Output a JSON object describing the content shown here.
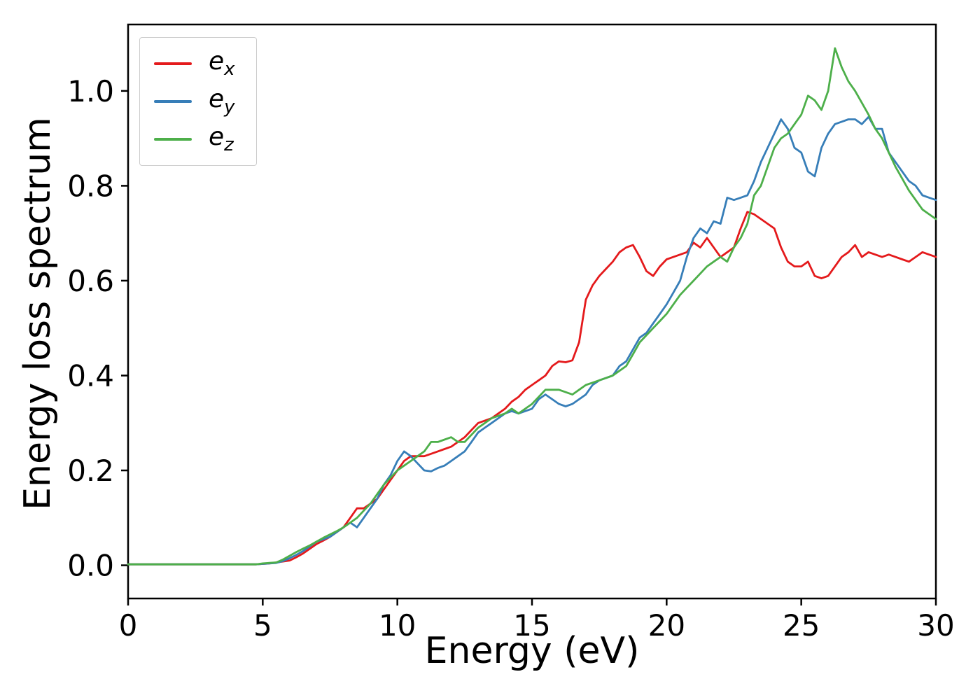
{
  "chart_data": {
    "type": "line",
    "title": "",
    "xlabel": "Energy (eV)",
    "ylabel": "Energy loss spectrum",
    "xlim": [
      0,
      30
    ],
    "ylim": [
      -0.07,
      1.14
    ],
    "xticks": [
      0,
      5,
      10,
      15,
      20,
      25,
      30
    ],
    "xtick_labels": [
      "0",
      "5",
      "10",
      "15",
      "20",
      "25",
      "30"
    ],
    "yticks": [
      0.0,
      0.2,
      0.4,
      0.6,
      0.8,
      1.0
    ],
    "ytick_labels": [
      "0.0",
      "0.2",
      "0.4",
      "0.6",
      "0.8",
      "1.0"
    ],
    "grid": false,
    "legend_position": "upper-left",
    "x": [
      0,
      0.25,
      0.5,
      0.75,
      1,
      1.25,
      1.5,
      1.75,
      2,
      2.25,
      2.5,
      2.75,
      3,
      3.25,
      3.5,
      3.75,
      4,
      4.25,
      4.5,
      4.75,
      5,
      5.25,
      5.5,
      5.75,
      6,
      6.25,
      6.5,
      6.75,
      7,
      7.25,
      7.5,
      7.75,
      8,
      8.25,
      8.5,
      8.75,
      9,
      9.25,
      9.5,
      9.75,
      10,
      10.25,
      10.5,
      10.75,
      11,
      11.25,
      11.5,
      11.75,
      12,
      12.25,
      12.5,
      12.75,
      13,
      13.25,
      13.5,
      13.75,
      14,
      14.25,
      14.5,
      14.75,
      15,
      15.25,
      15.5,
      15.75,
      16,
      16.25,
      16.5,
      16.75,
      17,
      17.25,
      17.5,
      17.75,
      18,
      18.25,
      18.5,
      18.75,
      19,
      19.25,
      19.5,
      19.75,
      20,
      20.25,
      20.5,
      20.75,
      21,
      21.25,
      21.5,
      21.75,
      22,
      22.25,
      22.5,
      22.75,
      23,
      23.25,
      23.5,
      23.75,
      24,
      24.25,
      24.5,
      24.75,
      25,
      25.25,
      25.5,
      25.75,
      26,
      26.25,
      26.5,
      26.75,
      27,
      27.25,
      27.5,
      27.75,
      28,
      28.25,
      28.5,
      28.75,
      29,
      29.25,
      29.5,
      29.75,
      30
    ],
    "series": [
      {
        "name": "e_x",
        "color": "#e41a1c",
        "y": [
          0.002,
          0.002,
          0.002,
          0.002,
          0.002,
          0.002,
          0.002,
          0.002,
          0.002,
          0.002,
          0.002,
          0.002,
          0.002,
          0.002,
          0.002,
          0.002,
          0.002,
          0.002,
          0.002,
          0.002,
          0.003,
          0.004,
          0.006,
          0.008,
          0.01,
          0.017,
          0.025,
          0.035,
          0.045,
          0.052,
          0.06,
          0.07,
          0.08,
          0.1,
          0.12,
          0.12,
          0.13,
          0.14,
          0.16,
          0.18,
          0.2,
          0.22,
          0.23,
          0.23,
          0.23,
          0.235,
          0.24,
          0.245,
          0.25,
          0.26,
          0.27,
          0.285,
          0.3,
          0.305,
          0.31,
          0.32,
          0.33,
          0.345,
          0.355,
          0.37,
          0.38,
          0.39,
          0.4,
          0.42,
          0.43,
          0.428,
          0.432,
          0.47,
          0.56,
          0.59,
          0.61,
          0.625,
          0.64,
          0.66,
          0.67,
          0.675,
          0.65,
          0.62,
          0.61,
          0.63,
          0.645,
          0.65,
          0.655,
          0.66,
          0.68,
          0.67,
          0.69,
          0.67,
          0.65,
          0.66,
          0.67,
          0.71,
          0.745,
          0.74,
          0.73,
          0.72,
          0.71,
          0.67,
          0.64,
          0.63,
          0.63,
          0.64,
          0.61,
          0.605,
          0.61,
          0.63,
          0.65,
          0.66,
          0.675,
          0.65,
          0.66,
          0.655,
          0.65,
          0.655,
          0.65,
          0.645,
          0.64,
          0.65,
          0.66,
          0.655,
          0.65
        ]
      },
      {
        "name": "e_y",
        "color": "#377eb8",
        "y": [
          0.002,
          0.002,
          0.002,
          0.002,
          0.002,
          0.002,
          0.002,
          0.002,
          0.002,
          0.002,
          0.002,
          0.002,
          0.002,
          0.002,
          0.002,
          0.002,
          0.002,
          0.002,
          0.002,
          0.002,
          0.003,
          0.004,
          0.005,
          0.009,
          0.015,
          0.022,
          0.03,
          0.04,
          0.05,
          0.055,
          0.06,
          0.07,
          0.08,
          0.09,
          0.08,
          0.1,
          0.12,
          0.14,
          0.17,
          0.19,
          0.22,
          0.24,
          0.23,
          0.215,
          0.2,
          0.198,
          0.205,
          0.21,
          0.22,
          0.23,
          0.24,
          0.26,
          0.28,
          0.29,
          0.3,
          0.31,
          0.32,
          0.325,
          0.32,
          0.325,
          0.33,
          0.35,
          0.36,
          0.35,
          0.34,
          0.335,
          0.34,
          0.35,
          0.36,
          0.38,
          0.39,
          0.395,
          0.4,
          0.42,
          0.43,
          0.455,
          0.48,
          0.49,
          0.51,
          0.53,
          0.55,
          0.575,
          0.6,
          0.65,
          0.69,
          0.71,
          0.7,
          0.725,
          0.72,
          0.775,
          0.77,
          0.775,
          0.78,
          0.81,
          0.85,
          0.88,
          0.91,
          0.94,
          0.92,
          0.88,
          0.87,
          0.83,
          0.82,
          0.88,
          0.91,
          0.93,
          0.935,
          0.94,
          0.94,
          0.93,
          0.945,
          0.92,
          0.92,
          0.87,
          0.85,
          0.83,
          0.81,
          0.8,
          0.78,
          0.775,
          0.77
        ]
      },
      {
        "name": "e_z",
        "color": "#4daf4a",
        "y": [
          0.002,
          0.002,
          0.002,
          0.002,
          0.002,
          0.002,
          0.002,
          0.002,
          0.002,
          0.002,
          0.002,
          0.002,
          0.002,
          0.002,
          0.002,
          0.002,
          0.002,
          0.002,
          0.002,
          0.002,
          0.004,
          0.005,
          0.006,
          0.012,
          0.02,
          0.028,
          0.035,
          0.042,
          0.05,
          0.058,
          0.065,
          0.072,
          0.08,
          0.09,
          0.1,
          0.115,
          0.13,
          0.15,
          0.17,
          0.185,
          0.2,
          0.21,
          0.22,
          0.23,
          0.24,
          0.26,
          0.26,
          0.265,
          0.27,
          0.26,
          0.26,
          0.275,
          0.29,
          0.3,
          0.31,
          0.315,
          0.32,
          0.33,
          0.32,
          0.33,
          0.34,
          0.355,
          0.37,
          0.37,
          0.37,
          0.365,
          0.36,
          0.37,
          0.38,
          0.385,
          0.39,
          0.395,
          0.4,
          0.41,
          0.42,
          0.445,
          0.47,
          0.485,
          0.5,
          0.515,
          0.53,
          0.55,
          0.57,
          0.585,
          0.6,
          0.615,
          0.63,
          0.64,
          0.65,
          0.64,
          0.67,
          0.69,
          0.72,
          0.78,
          0.8,
          0.84,
          0.88,
          0.9,
          0.91,
          0.93,
          0.95,
          0.99,
          0.98,
          0.96,
          1.0,
          1.09,
          1.05,
          1.02,
          1.0,
          0.975,
          0.95,
          0.92,
          0.9,
          0.87,
          0.84,
          0.815,
          0.79,
          0.77,
          0.75,
          0.74,
          0.73
        ]
      }
    ]
  }
}
